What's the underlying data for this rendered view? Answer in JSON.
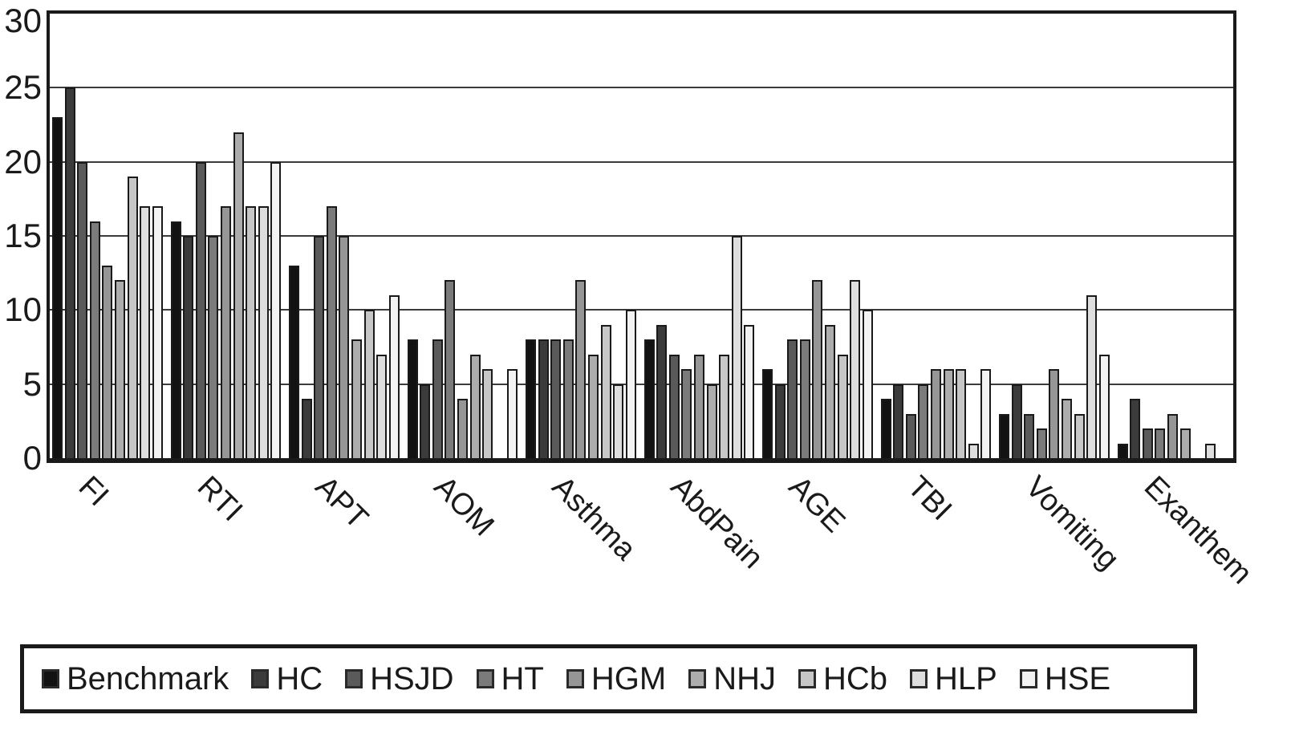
{
  "chart_data": {
    "type": "bar",
    "title": "",
    "xlabel": "",
    "ylabel": "",
    "categories": [
      "FI",
      "RTI",
      "APT",
      "AOM",
      "Asthma",
      "AbdPain",
      "AGE",
      "TBI",
      "Vomiting",
      "Exanthem"
    ],
    "series": [
      {
        "name": "Benchmark",
        "color": "#121212",
        "values": [
          23,
          16,
          13,
          8,
          8,
          8,
          6,
          4,
          3,
          1
        ]
      },
      {
        "name": "HC",
        "color": "#3b3b3b",
        "values": [
          25,
          15,
          4,
          5,
          8,
          9,
          5,
          5,
          5,
          4
        ]
      },
      {
        "name": "HSJD",
        "color": "#5a5a5a",
        "values": [
          20,
          20,
          15,
          8,
          8,
          7,
          8,
          3,
          3,
          2
        ]
      },
      {
        "name": "HT",
        "color": "#7b7b7b",
        "values": [
          16,
          15,
          17,
          12,
          8,
          6,
          8,
          5,
          2,
          2
        ]
      },
      {
        "name": "HGM",
        "color": "#969696",
        "values": [
          13,
          17,
          15,
          4,
          12,
          7,
          12,
          6,
          6,
          3
        ]
      },
      {
        "name": "NHJ",
        "color": "#adadad",
        "values": [
          12,
          22,
          8,
          7,
          7,
          5,
          9,
          6,
          4,
          2
        ]
      },
      {
        "name": "HCb",
        "color": "#c7c7c7",
        "values": [
          19,
          17,
          10,
          6,
          9,
          7,
          7,
          6,
          3,
          0
        ]
      },
      {
        "name": "HLP",
        "color": "#dedede",
        "values": [
          17,
          17,
          7,
          0,
          5,
          15,
          12,
          1,
          11,
          1
        ]
      },
      {
        "name": "HSE",
        "color": "#f3f3f3",
        "values": [
          17,
          20,
          11,
          6,
          10,
          9,
          10,
          6,
          7,
          0
        ]
      }
    ],
    "ylim": [
      0,
      30
    ],
    "yticks": [
      0,
      5,
      10,
      15,
      20,
      25,
      30
    ],
    "grid": true,
    "gridline_color": "#3c3c3c",
    "bar_outline_color": "#1a1a1a",
    "legend_position": "bottom",
    "x_label_rotation_deg": 45
  }
}
